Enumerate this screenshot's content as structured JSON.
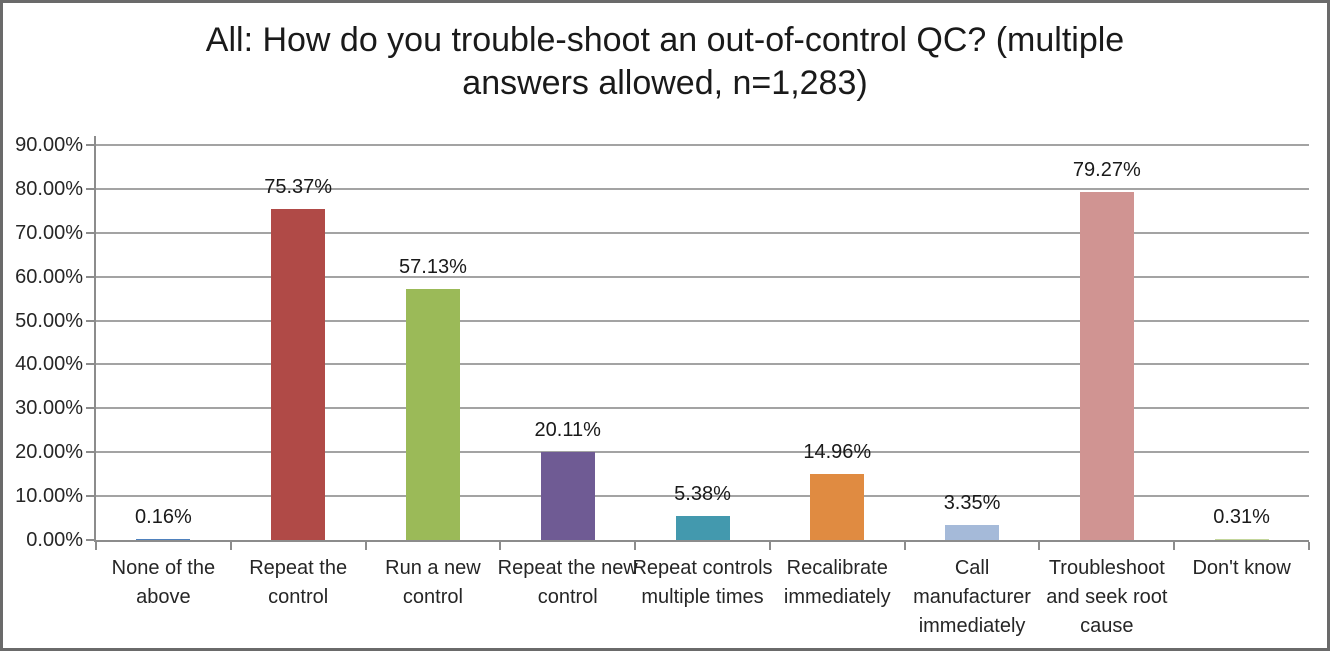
{
  "title": {
    "lines": [
      "All: How do you trouble-shoot an out-of-control QC? (multiple",
      "answers allowed, n=1,283)"
    ]
  },
  "chart_data": {
    "type": "bar",
    "title": "All: How do you trouble-shoot an out-of-control QC? (multiple answers allowed, n=1,283)",
    "categories": [
      "None of the above",
      "Repeat the control",
      "Run a new control",
      "Repeat the new control",
      "Repeat controls multiple times",
      "Recalibrate immediately",
      "Call manufacturer immediately",
      "Troubleshoot and seek root cause",
      "Don't know"
    ],
    "values": [
      0.16,
      75.37,
      57.13,
      20.11,
      5.38,
      14.96,
      3.35,
      79.27,
      0.31
    ],
    "value_labels": [
      "0.16%",
      "75.37%",
      "57.13%",
      "20.11%",
      "5.38%",
      "14.96%",
      "3.35%",
      "79.27%",
      "0.31%"
    ],
    "bar_colors": [
      "#4F81BD",
      "#B04A47",
      "#9BBA58",
      "#6F5B94",
      "#4399AE",
      "#E08B41",
      "#A5BAD9",
      "#D09492",
      "#C3D69B"
    ],
    "xlabel": "",
    "ylabel": "",
    "ylim": [
      0,
      90
    ],
    "ytick_step": 10,
    "ytick_labels": [
      "0.00%",
      "10.00%",
      "20.00%",
      "30.00%",
      "40.00%",
      "50.00%",
      "60.00%",
      "70.00%",
      "80.00%",
      "90.00%"
    ],
    "grid": true,
    "legend": "none",
    "data_label_position": "outside-end"
  }
}
